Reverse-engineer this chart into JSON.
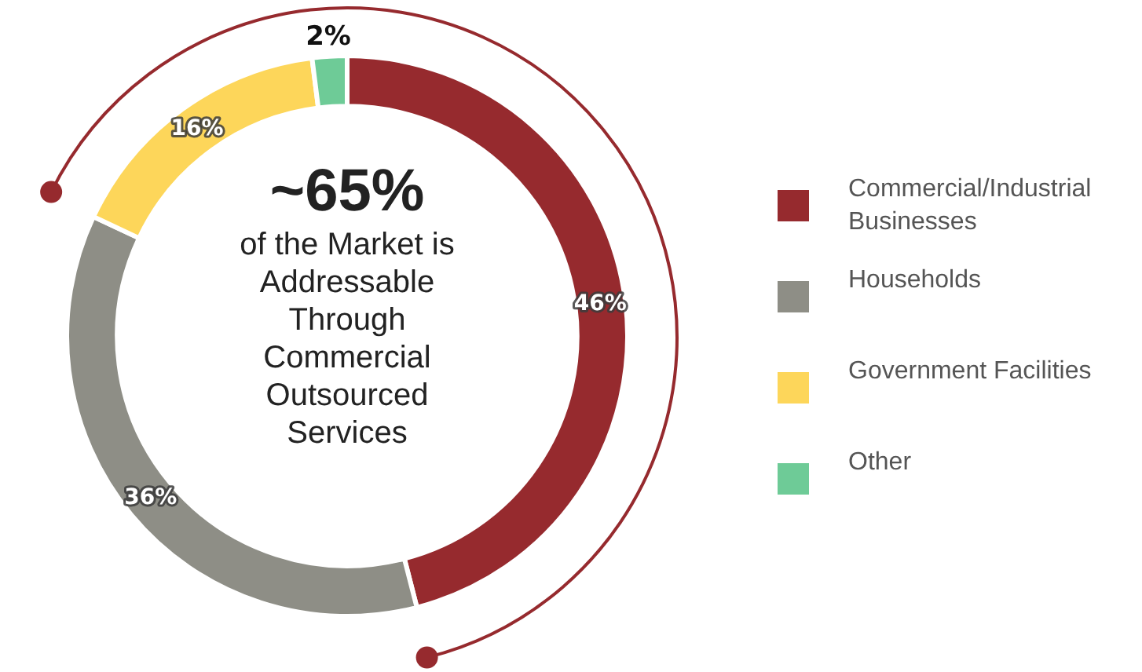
{
  "chart_data": {
    "type": "donut",
    "categories": [
      "Commercial/Industrial Businesses",
      "Households",
      "Government Facilities",
      "Other"
    ],
    "values": [
      46,
      36,
      16,
      2
    ],
    "colors": [
      "#962a2e",
      "#8e8e86",
      "#fdd65a",
      "#6ecb97"
    ],
    "value_labels": [
      "46%",
      "36%",
      "16%",
      "2%"
    ],
    "legend": "right",
    "annotations": [
      "~65%",
      "of the Market is Addressable Through Commercial Outsourced Services"
    ]
  }
}
